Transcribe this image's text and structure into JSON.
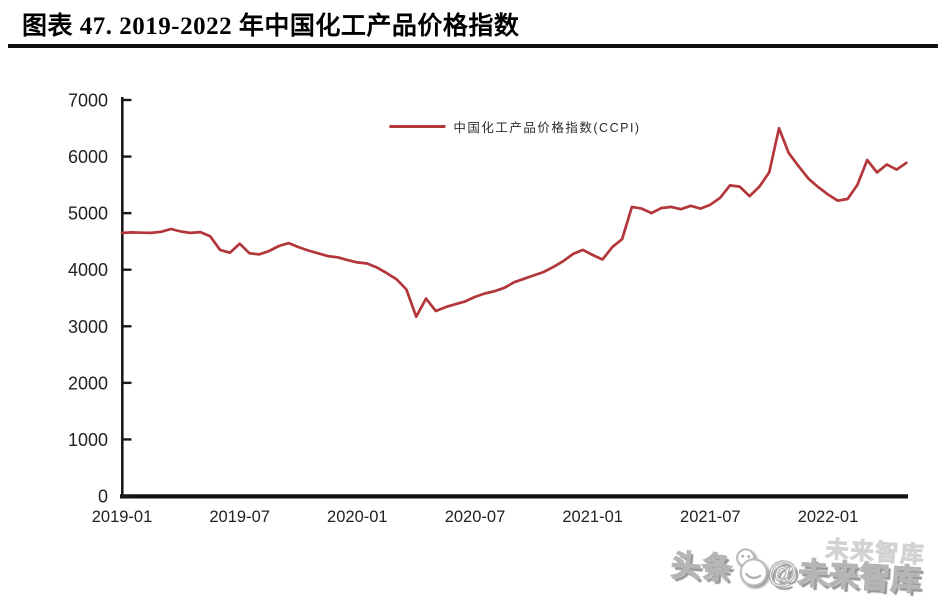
{
  "header": {
    "title": "图表 47. 2019-2022 年中国化工产品价格指数"
  },
  "chart_data": {
    "type": "line",
    "title": "图表 47. 2019-2022 年中国化工产品价格指数",
    "xlabel": "",
    "ylabel": "",
    "ylim": [
      0,
      7000
    ],
    "y_ticks": [
      0,
      1000,
      2000,
      3000,
      4000,
      5000,
      6000,
      7000
    ],
    "x_ticks": [
      "2019-01",
      "2019-07",
      "2020-01",
      "2020-07",
      "2021-01",
      "2021-07",
      "2022-01"
    ],
    "x_tick_month_offsets": [
      0,
      6,
      12,
      18,
      24,
      30,
      36
    ],
    "x_range": [
      "2019-01",
      "2022-05"
    ],
    "grid": false,
    "legend_position": "top-center",
    "series": [
      {
        "name": "中国化工产品价格指数(CCPI)",
        "color": "#b2363a",
        "x_start_month": "2019-01",
        "x_step_months": 0.5,
        "values": [
          4650,
          4660,
          4655,
          4650,
          4670,
          4720,
          4675,
          4650,
          4665,
          4590,
          4350,
          4300,
          4460,
          4290,
          4270,
          4330,
          4420,
          4470,
          4400,
          4340,
          4290,
          4240,
          4220,
          4170,
          4130,
          4110,
          4040,
          3940,
          3830,
          3650,
          3170,
          3490,
          3270,
          3340,
          3390,
          3440,
          3520,
          3580,
          3620,
          3680,
          3780,
          3840,
          3900,
          3960,
          4050,
          4150,
          4280,
          4350,
          4260,
          4180,
          4400,
          4540,
          5110,
          5080,
          5000,
          5090,
          5110,
          5070,
          5130,
          5080,
          5150,
          5270,
          5490,
          5470,
          5300,
          5470,
          5720,
          6500,
          6060,
          5830,
          5610,
          5460,
          5330,
          5220,
          5250,
          5500,
          5940,
          5720,
          5860,
          5770,
          5890
        ]
      }
    ]
  },
  "watermark": {
    "prefix": "头条",
    "handle": "@未来智库",
    "ghost": "未来智库",
    "logo": "toutiao-smiley-icon"
  }
}
